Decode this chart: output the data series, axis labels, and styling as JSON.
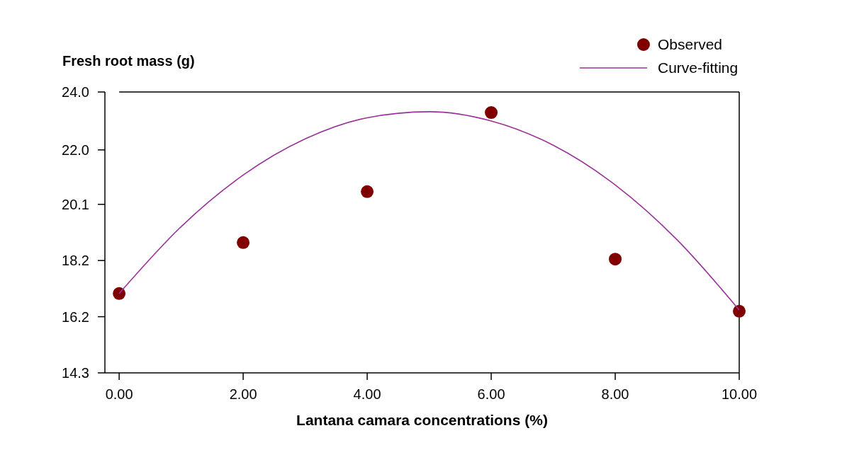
{
  "chart_data": {
    "type": "scatter",
    "ylabel": "Fresh root mass (g)",
    "xlabel": "Lantana camara concentrations (%)",
    "xlim": [
      -0.23,
      10
    ],
    "xticks": [
      {
        "value": 0,
        "label": "0.00"
      },
      {
        "value": 2,
        "label": "2.00"
      },
      {
        "value": 4,
        "label": "4.00"
      },
      {
        "value": 6,
        "label": "6.00"
      },
      {
        "value": 8,
        "label": "8.00"
      },
      {
        "value": 10,
        "label": "10.00"
      }
    ],
    "ylim": [
      14.3,
      24.0
    ],
    "yticks": [
      {
        "value": 14.3,
        "label": "14.3"
      },
      {
        "value": 16.24,
        "label": "16.2"
      },
      {
        "value": 18.18,
        "label": "18.2"
      },
      {
        "value": 20.12,
        "label": "20.1"
      },
      {
        "value": 22.0,
        "label": "22.0"
      },
      {
        "value": 24.0,
        "label": "24.0"
      }
    ],
    "legend": "top right",
    "grid": false,
    "series": [
      {
        "name": "Observed",
        "type": "scatter",
        "marker": "circle",
        "color": "#800000",
        "x": [
          0,
          2,
          4,
          6,
          8,
          10
        ],
        "values": [
          17.04,
          18.8,
          20.56,
          23.29,
          18.23,
          16.43
        ]
      },
      {
        "name": "Curve-fitting",
        "type": "line",
        "marker": "none",
        "line_style": "solid",
        "color": "#993399",
        "x": [
          0,
          1,
          2,
          3,
          4,
          5,
          6,
          7,
          8,
          9,
          10
        ],
        "values": [
          17.04,
          19.35,
          21.13,
          22.38,
          23.11,
          23.32,
          23.0,
          22.16,
          20.79,
          18.89,
          16.47
        ]
      }
    ]
  }
}
